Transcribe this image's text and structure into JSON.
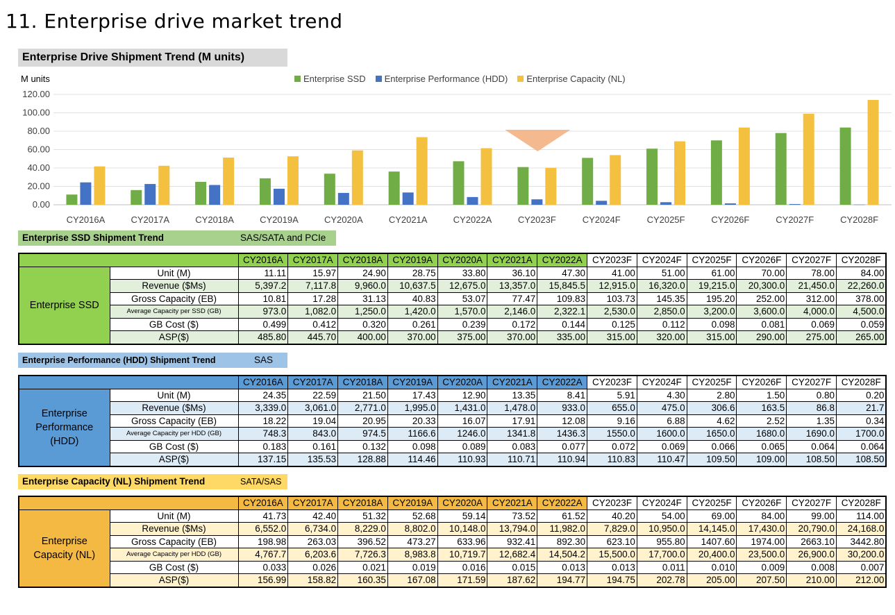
{
  "page_title": "11. Enterprise drive market trend",
  "chart_title": "Enterprise Drive  Shipment Trend (M units)",
  "unit_label": "M units",
  "colors": {
    "ssd": "#70ad47",
    "hdd": "#4472c4",
    "nl": "#f4c040",
    "arrow": "#f4b183"
  },
  "chart_data": {
    "type": "bar",
    "categories": [
      "CY2016A",
      "CY2017A",
      "CY2018A",
      "CY2019A",
      "CY2020A",
      "CY2021A",
      "CY2022A",
      "CY2023F",
      "CY2024F",
      "CY2025F",
      "CY2026F",
      "CY2027F",
      "CY2028F"
    ],
    "series": [
      {
        "name": "Enterprise SSD",
        "values": [
          11.11,
          15.97,
          24.9,
          28.75,
          33.8,
          36.1,
          47.3,
          41.0,
          51.0,
          61.0,
          70.0,
          78.0,
          84.0
        ]
      },
      {
        "name": "Enterprise Performance (HDD)",
        "values": [
          24.35,
          22.59,
          21.5,
          17.43,
          12.9,
          13.35,
          8.41,
          5.91,
          4.3,
          2.8,
          1.5,
          0.8,
          0.2
        ]
      },
      {
        "name": "Enterprise Capacity (NL)",
        "values": [
          41.73,
          42.4,
          51.32,
          52.68,
          59.14,
          73.52,
          61.52,
          40.2,
          54.0,
          69.0,
          84.0,
          99.0,
          114.0
        ]
      }
    ],
    "yticks": [
      "0.00",
      "20.00",
      "40.00",
      "60.00",
      "80.00",
      "100.00",
      "120.00"
    ],
    "ylim": [
      0,
      120
    ],
    "grid": true,
    "legend": "top"
  },
  "ssd": {
    "label": "Enterprise SSD Shipment Trend",
    "sub": "SAS/SATA and PCIe",
    "group": "Enterprise SSD",
    "years": [
      "CY2016A",
      "CY2017A",
      "CY2018A",
      "CY2019A",
      "CY2020A",
      "CY2021A",
      "CY2022A",
      "CY2023F",
      "CY2024F",
      "CY2025F",
      "CY2026F",
      "CY2027F",
      "CY2028F"
    ],
    "rows": [
      {
        "label": "Unit (M)",
        "cells": [
          "11.11",
          "15.97",
          "24.90",
          "28.75",
          "33.80",
          "36.10",
          "47.30",
          "41.00",
          "51.00",
          "61.00",
          "70.00",
          "78.00",
          "84.00"
        ]
      },
      {
        "label": "Revenue ($Ms)",
        "cells": [
          "5,397.2",
          "7,117.8",
          "9,960.0",
          "10,637.5",
          "12,675.0",
          "13,357.0",
          "15,845.5",
          "12,915.0",
          "16,320.0",
          "19,215.0",
          "20,300.0",
          "21,450.0",
          "22,260.0"
        ]
      },
      {
        "label": "Gross Capacity (EB)",
        "cells": [
          "10.81",
          "17.28",
          "31.13",
          "40.83",
          "53.07",
          "77.47",
          "109.83",
          "103.73",
          "145.35",
          "195.20",
          "252.00",
          "312.00",
          "378.00"
        ]
      },
      {
        "label": "Average Capacity per SSD (GB)",
        "cells": [
          "973.0",
          "1,082.0",
          "1,250.0",
          "1,420.0",
          "1,570.0",
          "2,146.0",
          "2,322.1",
          "2,530.0",
          "2,850.0",
          "3,200.0",
          "3,600.0",
          "4,000.0",
          "4,500.0"
        ]
      },
      {
        "label": "GB Cost ($)",
        "cells": [
          "0.499",
          "0.412",
          "0.320",
          "0.261",
          "0.239",
          "0.172",
          "0.144",
          "0.125",
          "0.112",
          "0.098",
          "0.081",
          "0.069",
          "0.059"
        ]
      },
      {
        "label": "ASP($)",
        "cells": [
          "485.80",
          "445.70",
          "400.00",
          "370.00",
          "375.00",
          "370.00",
          "335.00",
          "315.00",
          "320.00",
          "315.00",
          "290.00",
          "275.00",
          "265.00"
        ]
      }
    ]
  },
  "hdd": {
    "label": "Enterprise Performance (HDD) Shipment Trend",
    "sub": "SAS",
    "group": "Enterprise Performance (HDD)",
    "years": [
      "CY2016A",
      "CY2017A",
      "CY2018A",
      "CY2019A",
      "CY2020A",
      "CY2021A",
      "CY2022A",
      "CY2023F",
      "CY2024F",
      "CY2025F",
      "CY2026F",
      "CY2027F",
      "CY2028F"
    ],
    "rows": [
      {
        "label": "Unit (M)",
        "cells": [
          "24.35",
          "22.59",
          "21.50",
          "17.43",
          "12.90",
          "13.35",
          "8.41",
          "5.91",
          "4.30",
          "2.80",
          "1.50",
          "0.80",
          "0.20"
        ]
      },
      {
        "label": "Revenue ($Ms)",
        "cells": [
          "3,339.0",
          "3,061.0",
          "2,771.0",
          "1,995.0",
          "1,431.0",
          "1,478.0",
          "933.0",
          "655.0",
          "475.0",
          "306.6",
          "163.5",
          "86.8",
          "21.7"
        ]
      },
      {
        "label": "Gross Capacity (EB)",
        "cells": [
          "18.22",
          "19.04",
          "20.95",
          "20.33",
          "16.07",
          "17.91",
          "12.08",
          "9.16",
          "6.88",
          "4.62",
          "2.52",
          "1.35",
          "0.34"
        ]
      },
      {
        "label": "Average Capacity per HDD (GB)",
        "cells": [
          "748.3",
          "843.0",
          "974.5",
          "1166.6",
          "1246.0",
          "1341.8",
          "1436.3",
          "1550.0",
          "1600.0",
          "1650.0",
          "1680.0",
          "1690.0",
          "1700.0"
        ]
      },
      {
        "label": "GB Cost ($)",
        "cells": [
          "0.183",
          "0.161",
          "0.132",
          "0.098",
          "0.089",
          "0.083",
          "0.077",
          "0.072",
          "0.069",
          "0.066",
          "0.065",
          "0.064",
          "0.064"
        ]
      },
      {
        "label": "ASP($)",
        "cells": [
          "137.15",
          "135.53",
          "128.88",
          "114.46",
          "110.93",
          "110.71",
          "110.94",
          "110.83",
          "110.47",
          "109.50",
          "109.00",
          "108.50",
          "108.50"
        ]
      }
    ]
  },
  "nl": {
    "label": "Enterprise Capacity (NL) Shipment Trend",
    "sub": "SATA/SAS",
    "group": "Enterprise Capacity (NL)",
    "years": [
      "CY2016A",
      "CY2017A",
      "CY2018A",
      "CY2019A",
      "CY2020A",
      "CY2021A",
      "CY2022A",
      "CY2023F",
      "CY2024F",
      "CY2025F",
      "CY2026F",
      "CY2027F",
      "CY2028F"
    ],
    "rows": [
      {
        "label": "Unit (M)",
        "cells": [
          "41.73",
          "42.40",
          "51.32",
          "52.68",
          "59.14",
          "73.52",
          "61.52",
          "40.20",
          "54.00",
          "69.00",
          "84.00",
          "99.00",
          "114.00"
        ]
      },
      {
        "label": "Revenue ($Ms)",
        "cells": [
          "6,552.0",
          "6,734.0",
          "8,229.0",
          "8,802.0",
          "10,148.0",
          "13,794.0",
          "11,982.0",
          "7,829.0",
          "10,950.0",
          "14,145.0",
          "17,430.0",
          "20,790.0",
          "24,168.0"
        ]
      },
      {
        "label": "Gross Capacity (EB)",
        "cells": [
          "198.98",
          "263.03",
          "396.52",
          "473.27",
          "633.96",
          "932.41",
          "892.30",
          "623.10",
          "955.80",
          "1407.60",
          "1974.00",
          "2663.10",
          "3442.80"
        ]
      },
      {
        "label": "Average Capacity per HDD (GB)",
        "cells": [
          "4,767.7",
          "6,203.6",
          "7,726.3",
          "8,983.8",
          "10,719.7",
          "12,682.4",
          "14,504.2",
          "15,500.0",
          "17,700.0",
          "20,400.0",
          "23,500.0",
          "26,900.0",
          "30,200.0"
        ]
      },
      {
        "label": "GB Cost ($)",
        "cells": [
          "0.033",
          "0.026",
          "0.021",
          "0.019",
          "0.016",
          "0.015",
          "0.013",
          "0.013",
          "0.011",
          "0.010",
          "0.009",
          "0.008",
          "0.007"
        ]
      },
      {
        "label": "ASP($)",
        "cells": [
          "156.99",
          "158.82",
          "160.35",
          "167.08",
          "171.59",
          "187.62",
          "194.77",
          "194.75",
          "202.78",
          "205.00",
          "207.50",
          "210.00",
          "212.00"
        ]
      }
    ]
  }
}
